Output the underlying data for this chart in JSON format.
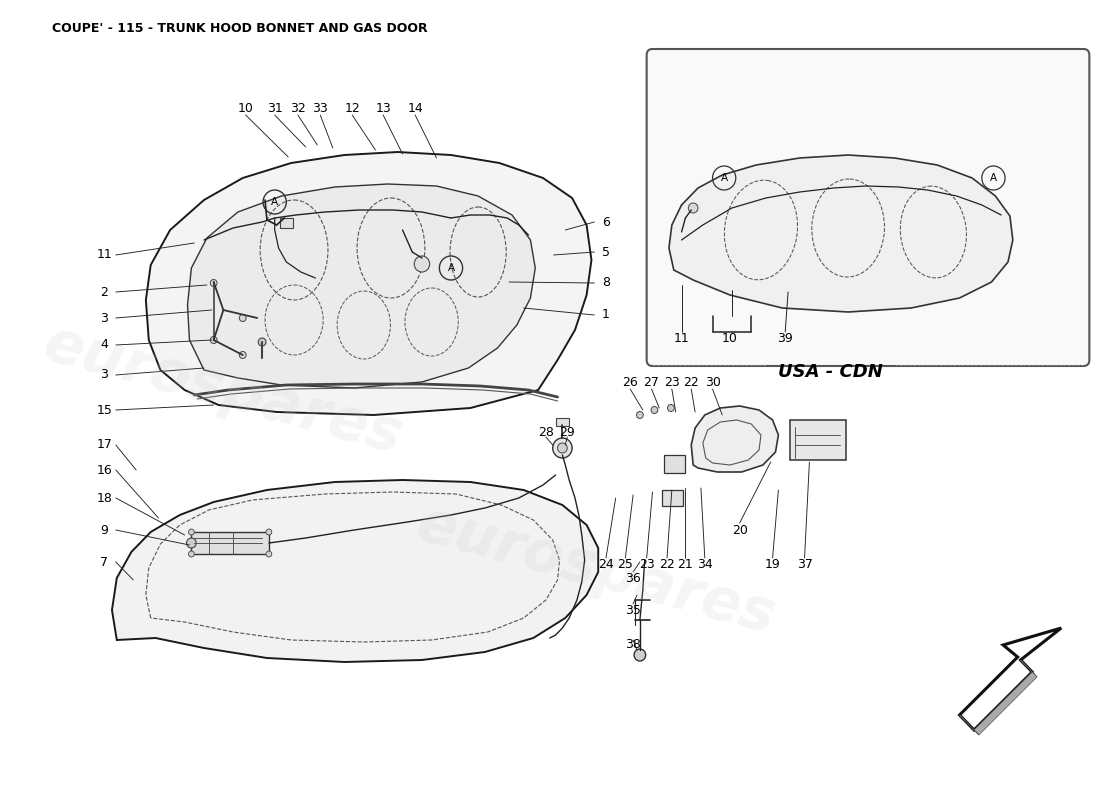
{
  "title": "COUPE' - 115 - TRUNK HOOD BONNET AND GAS DOOR",
  "title_fontsize": 9,
  "background_color": "#ffffff",
  "watermark_text": "eurospares",
  "usa_cdn_label": "USA - CDN",
  "diagram_color": "#1a1a1a",
  "line_color": "#333333",
  "text_color": "#000000",
  "part_fs": 9
}
